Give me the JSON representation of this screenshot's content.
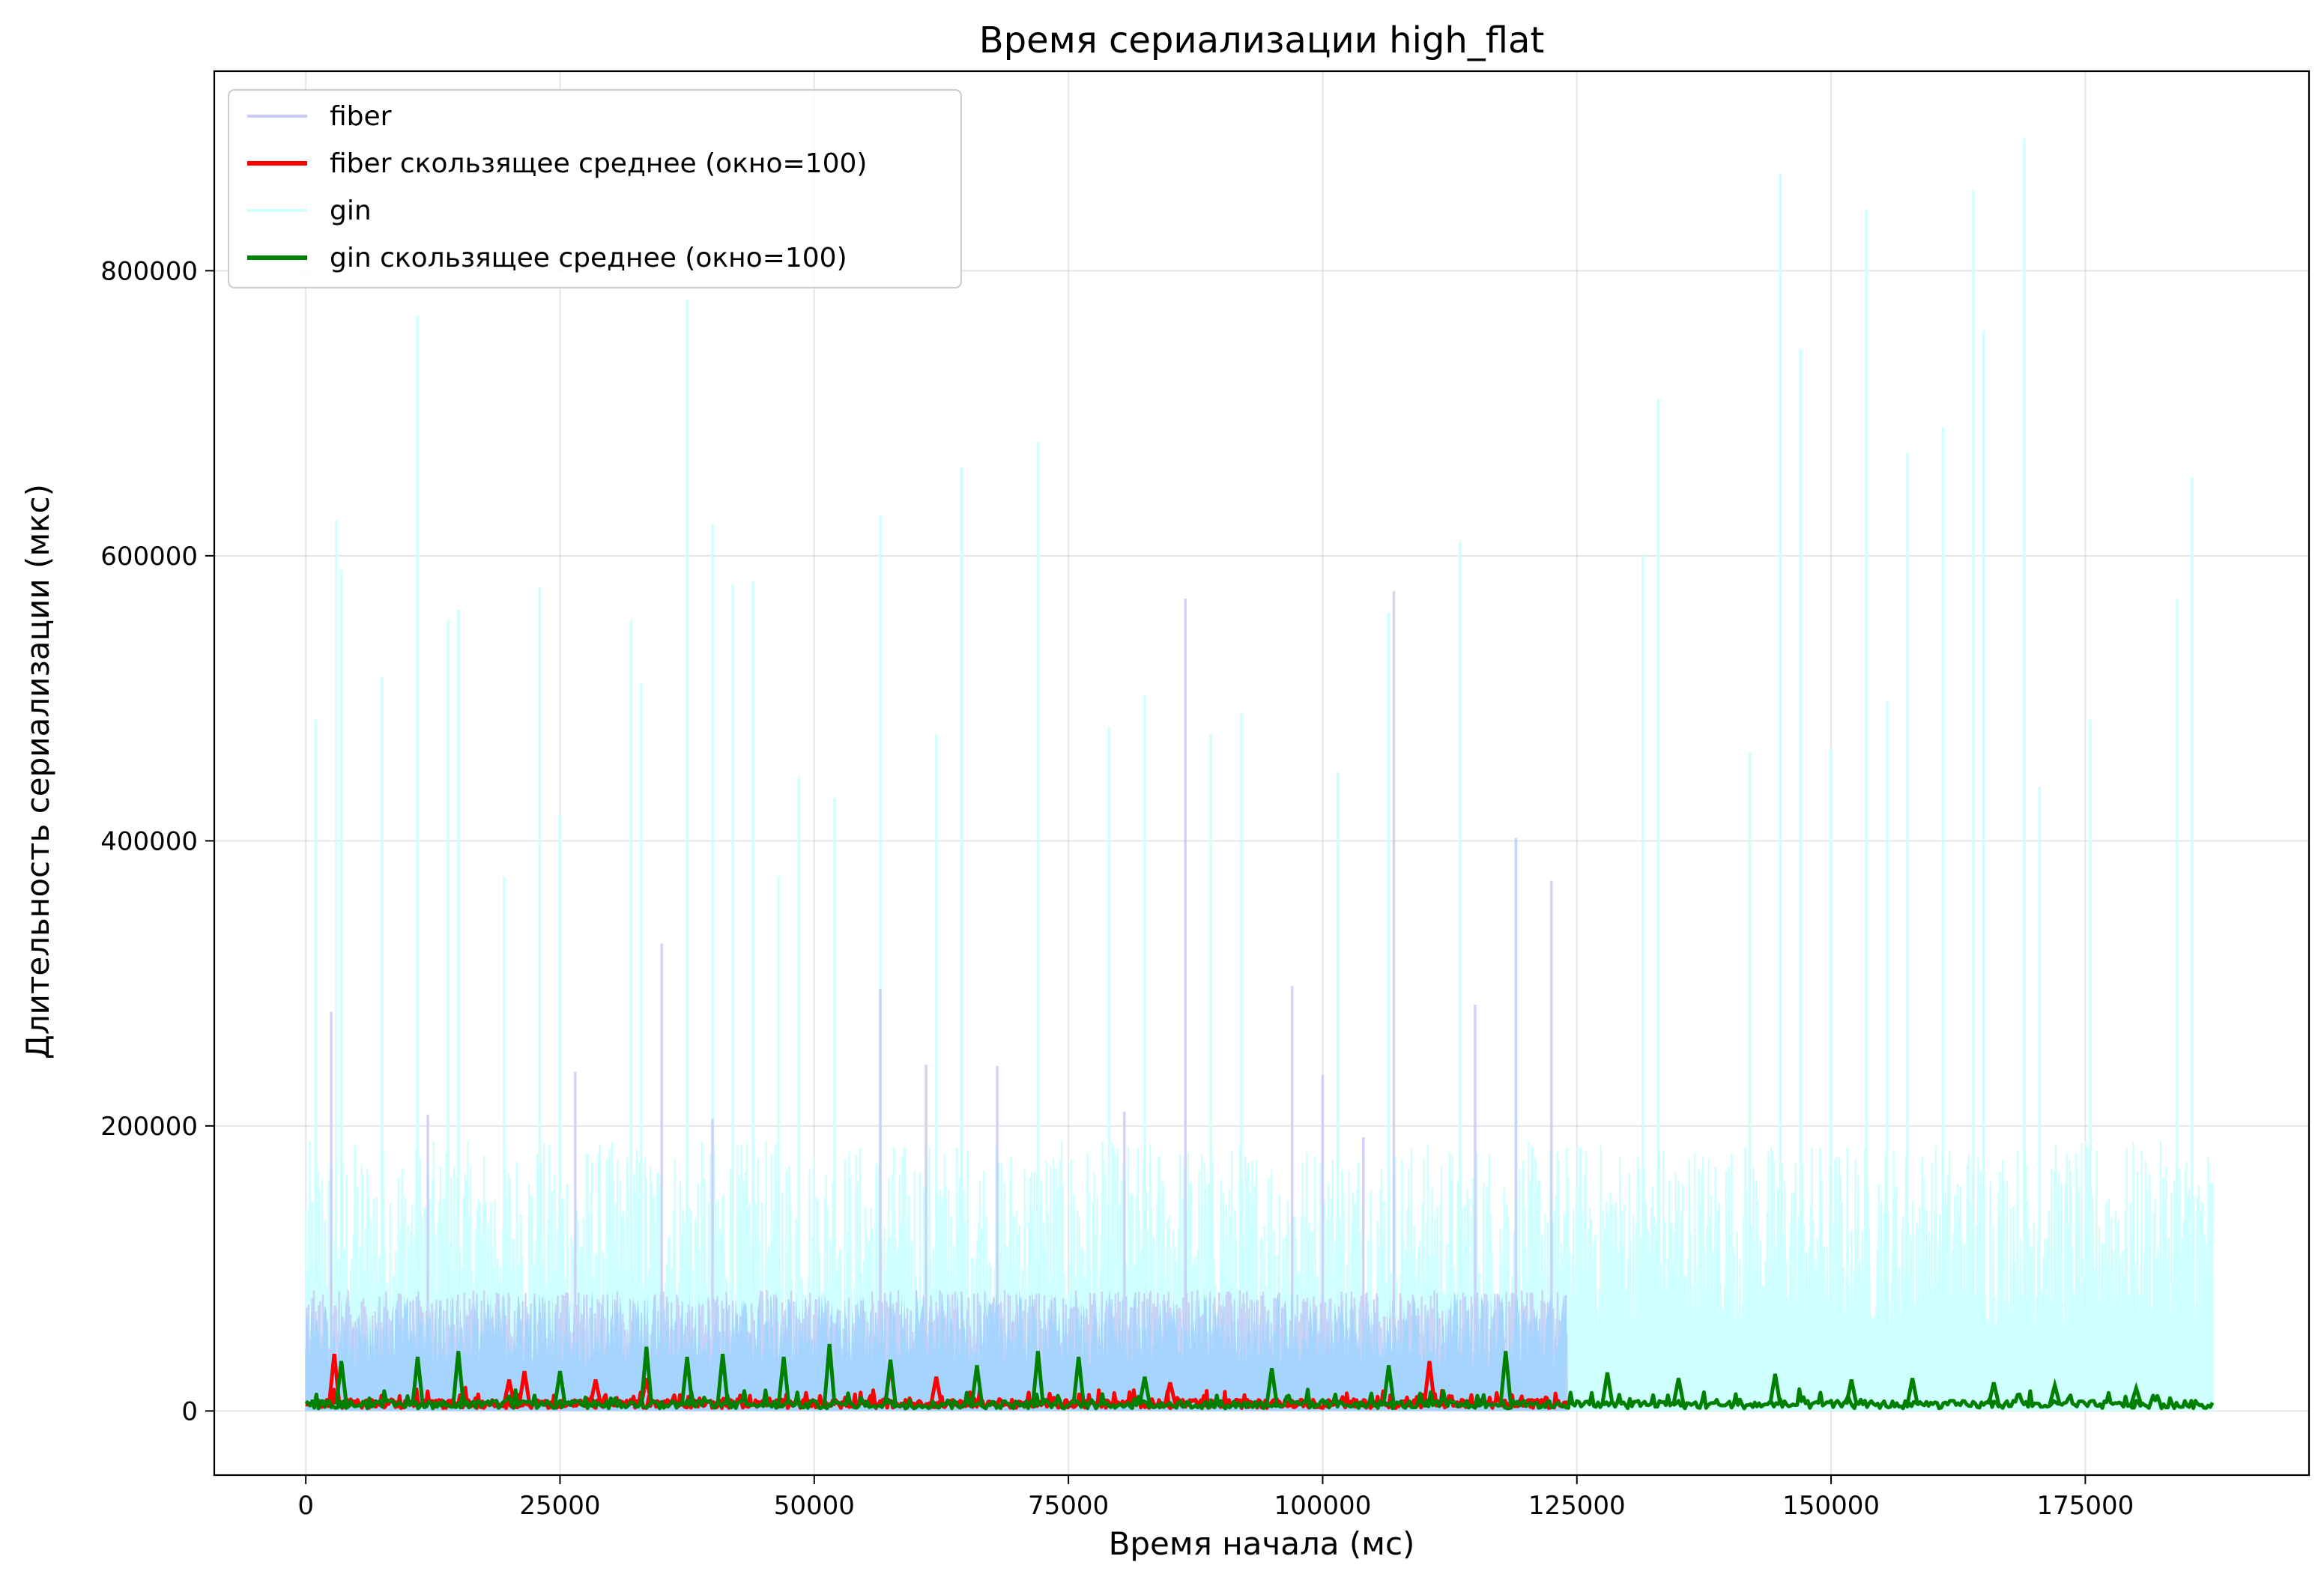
{
  "chart_data": {
    "type": "line",
    "title": "Время сериализации high_flat",
    "xlabel": "Время начала (мс)",
    "ylabel": "Длительность сериализации (мкс)",
    "xlim": [
      -9000,
      197000
    ],
    "ylim": [
      -45000,
      940000
    ],
    "x_ticks": [
      0,
      25000,
      50000,
      75000,
      100000,
      125000,
      150000,
      175000
    ],
    "x_tick_labels": [
      "0",
      "25000",
      "50000",
      "75000",
      "100000",
      "125000",
      "150000",
      "175000"
    ],
    "y_ticks": [
      0,
      200000,
      400000,
      600000,
      800000
    ],
    "y_tick_labels": [
      "0",
      "200000",
      "400000",
      "600000",
      "800000"
    ],
    "grid": true,
    "legend_position": "top-left",
    "legend": [
      {
        "label": "fiber",
        "color": "#c8cbf5"
      },
      {
        "label": "fiber скользящее среднее (окно=100)",
        "color": "#ff0000"
      },
      {
        "label": "gin",
        "color": "#ccffff"
      },
      {
        "label": "gin скользящее среднее (окно=100)",
        "color": "#008000"
      }
    ],
    "series": [
      {
        "name": "gin",
        "color": "#ccffff",
        "x_range": [
          0,
          187500
        ],
        "typical_band_max": 190000,
        "spike_x": [
          1000,
          3000,
          3500,
          7500,
          11000,
          14000,
          15000,
          19500,
          23000,
          25000,
          32000,
          33000,
          37500,
          40000,
          42000,
          44000,
          46500,
          48500,
          52000,
          56500,
          62000,
          64500,
          72000,
          79000,
          82500,
          89000,
          92000,
          101500,
          106500,
          113500,
          119000,
          131500,
          133000,
          142000,
          145000,
          147000,
          150000,
          153500,
          155500,
          157500,
          161000,
          164000,
          165000,
          169000,
          170500,
          175500,
          184000,
          185500
        ],
        "spike_y": [
          485000,
          625000,
          590000,
          515000,
          768000,
          555000,
          562000,
          375000,
          578000,
          418000,
          555000,
          510000,
          780000,
          622000,
          580000,
          582000,
          375000,
          445000,
          430000,
          628000,
          475000,
          662000,
          680000,
          480000,
          502000,
          475000,
          490000,
          448000,
          560000,
          610000,
          400000,
          600000,
          710000,
          462000,
          868000,
          745000,
          465000,
          843000,
          498000,
          672000,
          690000,
          857000,
          758000,
          893000,
          438000,
          485000,
          570000,
          655000
        ]
      },
      {
        "name": "fiber",
        "color": "#c8cbf5",
        "x_range": [
          0,
          124000
        ],
        "typical_band_max": 85000,
        "spike_x": [
          2500,
          12000,
          26500,
          35000,
          40000,
          56500,
          61000,
          68000,
          80500,
          86500,
          97000,
          100000,
          104000,
          107000,
          115000,
          119000,
          122500
        ],
        "spike_y": [
          280000,
          208000,
          238000,
          328000,
          205000,
          296000,
          243000,
          242000,
          210000,
          570000,
          298000,
          236000,
          192000,
          575000,
          285000,
          402000,
          372000
        ]
      },
      {
        "name": "fiber скользящее среднее (окно=100)",
        "color": "#ff0000",
        "x_range": [
          0,
          124000
        ],
        "baseline": 5000,
        "spike_x": [
          2800,
          20000,
          21500,
          28500,
          33500,
          57500,
          62000,
          85000,
          110500
        ],
        "spike_y": [
          40000,
          22000,
          28000,
          22000,
          23000,
          33000,
          24000,
          20000,
          35000
        ]
      },
      {
        "name": "gin скользящее среднее (окно=100)",
        "color": "#008000",
        "x_range": [
          0,
          187500
        ],
        "baseline": 4500,
        "spike_x": [
          3500,
          11000,
          15000,
          25000,
          33500,
          37500,
          41000,
          47000,
          51500,
          57500,
          66000,
          72000,
          76000,
          82500,
          95000,
          106500,
          118000,
          128000,
          135000,
          144500,
          152000,
          158000,
          166000,
          172000,
          180000
        ],
        "spike_y": [
          35000,
          38000,
          42000,
          28000,
          45000,
          38000,
          40000,
          38000,
          47000,
          36000,
          32000,
          42000,
          38000,
          24000,
          30000,
          32000,
          42000,
          27000,
          23000,
          26000,
          22000,
          23000,
          20000,
          18000,
          16000
        ]
      }
    ]
  }
}
